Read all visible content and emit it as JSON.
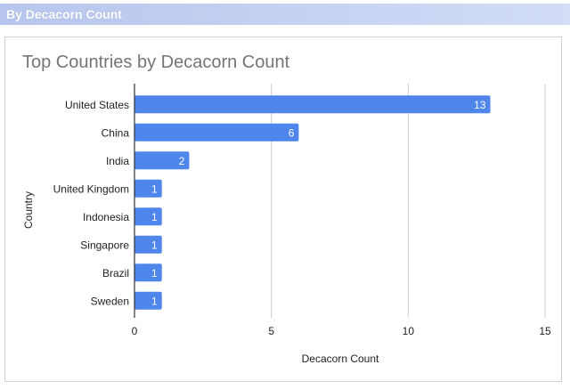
{
  "section": {
    "header": "By Decacorn Count"
  },
  "chart_data": {
    "type": "bar",
    "orientation": "horizontal",
    "title": "Top Countries by Decacorn Count",
    "xlabel": "Decacorn Count",
    "ylabel": "Country",
    "categories": [
      "United States",
      "China",
      "India",
      "United Kingdom",
      "Indonesia",
      "Singapore",
      "Brazil",
      "Sweden"
    ],
    "values": [
      13,
      6,
      2,
      1,
      1,
      1,
      1,
      1
    ],
    "xlim": [
      0,
      15
    ],
    "xticks": [
      0,
      5,
      10,
      15
    ],
    "grid": true,
    "data_labels": true,
    "legend": "none",
    "colors": {
      "bar": "#4f86ec",
      "grid": "#cccccc",
      "axis": "#333333"
    }
  }
}
